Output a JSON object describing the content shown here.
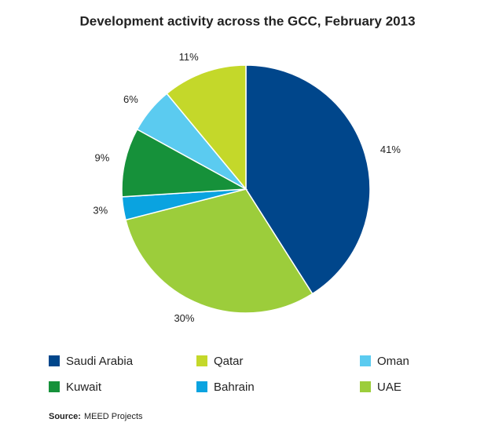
{
  "chart_data": {
    "type": "pie",
    "title": "Development activity across the GCC, February 2013",
    "categories": [
      "Saudi Arabia",
      "UAE",
      "Bahrain",
      "Kuwait",
      "Oman",
      "Qatar"
    ],
    "values": [
      41,
      30,
      3,
      9,
      6,
      11
    ],
    "value_labels": [
      "41%",
      "30%",
      "3%",
      "9%",
      "6%",
      "11%"
    ],
    "colors": [
      "#00468b",
      "#9ccd3b",
      "#0aa3e0",
      "#16913a",
      "#5bcbf0",
      "#c4d82a"
    ],
    "source_label": "Source:",
    "source": "MEED Projects"
  }
}
